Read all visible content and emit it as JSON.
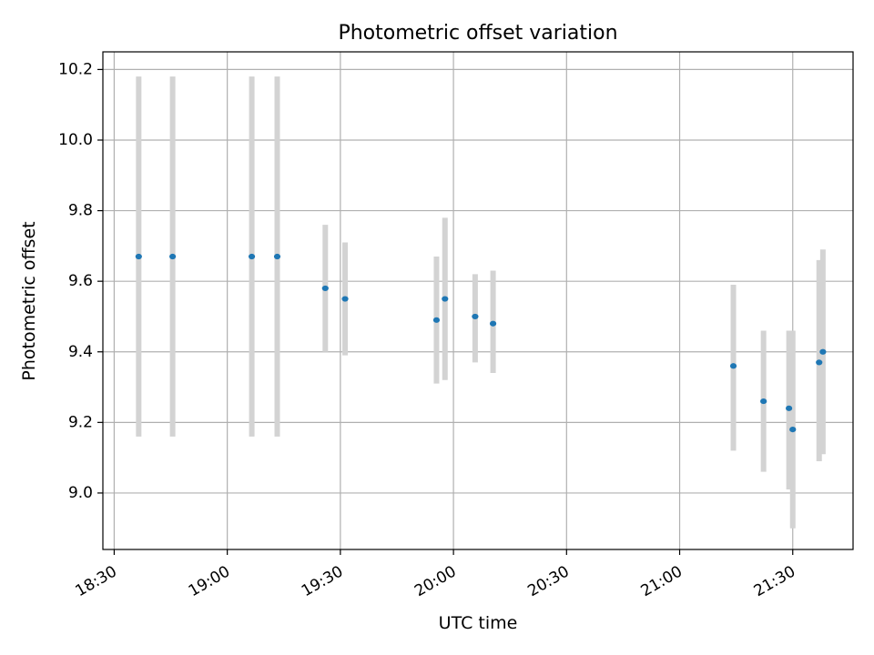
{
  "chart_data": {
    "type": "scatter",
    "title": "Photometric offset variation",
    "xlabel": "UTC time",
    "ylabel": "Photometric offset",
    "x_axis_type": "time",
    "xlim": [
      "18:27",
      "21:46"
    ],
    "ylim": [
      8.84,
      10.25
    ],
    "grid": true,
    "legend": "none",
    "x_ticks": [
      "18:30",
      "19:00",
      "19:30",
      "20:00",
      "20:30",
      "21:00",
      "21:30"
    ],
    "y_ticks": [
      9.0,
      9.2,
      9.4,
      9.6,
      9.8,
      10.0,
      10.2
    ],
    "colors": {
      "marker": "#1f77b4",
      "errorbar": "#d3d3d3",
      "grid": "#b0b0b0"
    },
    "series": [
      {
        "points": [
          {
            "x": "18:36:30",
            "y": 9.67,
            "ylow": 9.16,
            "yhigh": 10.18
          },
          {
            "x": "18:45:30",
            "y": 9.67,
            "ylow": 9.16,
            "yhigh": 10.18
          },
          {
            "x": "19:06:30",
            "y": 9.67,
            "ylow": 9.16,
            "yhigh": 10.18
          },
          {
            "x": "19:13:15",
            "y": 9.67,
            "ylow": 9.16,
            "yhigh": 10.18
          },
          {
            "x": "19:26:00",
            "y": 9.58,
            "ylow": 9.4,
            "yhigh": 9.76
          },
          {
            "x": "19:31:15",
            "y": 9.55,
            "ylow": 9.39,
            "yhigh": 9.71
          },
          {
            "x": "19:55:30",
            "y": 9.49,
            "ylow": 9.31,
            "yhigh": 9.67
          },
          {
            "x": "19:57:45",
            "y": 9.55,
            "ylow": 9.32,
            "yhigh": 9.78
          },
          {
            "x": "20:05:45",
            "y": 9.5,
            "ylow": 9.37,
            "yhigh": 9.62
          },
          {
            "x": "20:10:30",
            "y": 9.48,
            "ylow": 9.34,
            "yhigh": 9.63
          },
          {
            "x": "21:14:15",
            "y": 9.36,
            "ylow": 9.12,
            "yhigh": 9.59
          },
          {
            "x": "21:22:15",
            "y": 9.26,
            "ylow": 9.06,
            "yhigh": 9.46
          },
          {
            "x": "21:29:00",
            "y": 9.24,
            "ylow": 9.01,
            "yhigh": 9.46
          },
          {
            "x": "21:30:00",
            "y": 9.18,
            "ylow": 8.9,
            "yhigh": 9.46
          },
          {
            "x": "21:37:00",
            "y": 9.37,
            "ylow": 9.09,
            "yhigh": 9.66
          },
          {
            "x": "21:38:00",
            "y": 9.4,
            "ylow": 9.11,
            "yhigh": 9.69
          }
        ]
      }
    ]
  }
}
